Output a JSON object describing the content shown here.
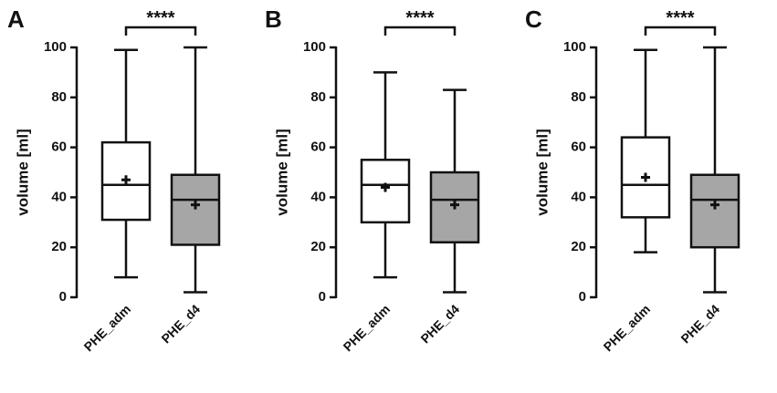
{
  "chart_data": [
    {
      "type": "box",
      "panel_label": "A",
      "ylabel": "volume  [ml]",
      "ylim": [
        0,
        100
      ],
      "yticks": [
        "0",
        "20",
        "40",
        "60",
        "80",
        "100"
      ],
      "categories": [
        "PHE_adm",
        "PHE_d4"
      ],
      "boxes": [
        {
          "min": 8,
          "q1": 31,
          "median": 45,
          "q3": 62,
          "max": 99,
          "mean": 47,
          "fill": "#ffffff"
        },
        {
          "min": 2,
          "q1": 21,
          "median": 39,
          "q3": 49,
          "max": 100,
          "mean": 37,
          "fill": "#a6a6a6"
        }
      ],
      "significance": "****"
    },
    {
      "type": "box",
      "panel_label": "B",
      "ylabel": "volume  [ml]",
      "ylim": [
        0,
        100
      ],
      "yticks": [
        "0",
        "20",
        "40",
        "60",
        "80",
        "100"
      ],
      "categories": [
        "PHE_adm",
        "PHE_d4"
      ],
      "boxes": [
        {
          "min": 8,
          "q1": 30,
          "median": 45,
          "q3": 55,
          "max": 90,
          "mean": 44,
          "fill": "#ffffff"
        },
        {
          "min": 2,
          "q1": 22,
          "median": 39,
          "q3": 50,
          "max": 83,
          "mean": 37,
          "fill": "#a6a6a6"
        }
      ],
      "significance": "****"
    },
    {
      "type": "box",
      "panel_label": "C",
      "ylabel": "volume  [ml]",
      "ylim": [
        0,
        100
      ],
      "yticks": [
        "0",
        "20",
        "40",
        "60",
        "80",
        "100"
      ],
      "categories": [
        "PHE_adm",
        "PHE_d4"
      ],
      "boxes": [
        {
          "min": 18,
          "q1": 32,
          "median": 45,
          "q3": 64,
          "max": 99,
          "mean": 48,
          "fill": "#ffffff"
        },
        {
          "min": 2,
          "q1": 20,
          "median": 39,
          "q3": 49,
          "max": 100,
          "mean": 37,
          "fill": "#a6a6a6"
        }
      ],
      "significance": "****"
    }
  ]
}
